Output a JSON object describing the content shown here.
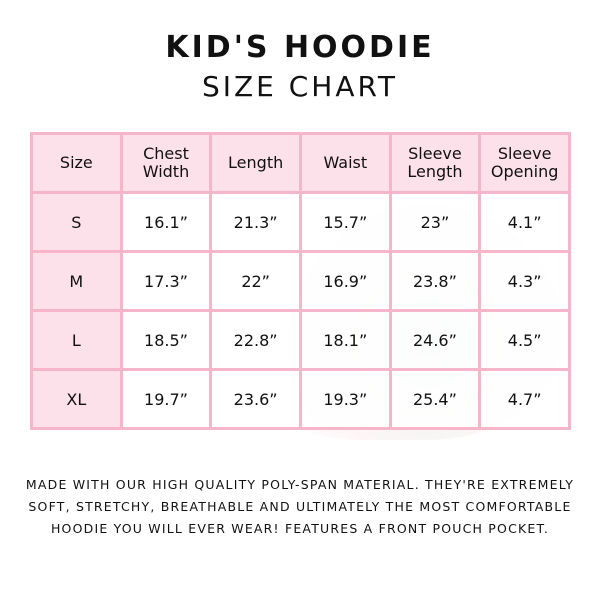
{
  "title": "KID'S HOODIE",
  "subtitle": "SIZE CHART",
  "table": {
    "headers": [
      "Size",
      "Chest Width",
      "Length",
      "Waist",
      "Sleeve Length",
      "Sleeve Opening"
    ],
    "rows": [
      [
        "S",
        "16.1”",
        "21.3”",
        "15.7”",
        "23”",
        "4.1”"
      ],
      [
        "M",
        "17.3”",
        "22”",
        "16.9”",
        "23.8”",
        "4.3”"
      ],
      [
        "L",
        "18.5”",
        "22.8”",
        "18.1”",
        "24.6”",
        "4.5”"
      ],
      [
        "XL",
        "19.7”",
        "23.6”",
        "19.3”",
        "25.4”",
        "4.7”"
      ]
    ]
  },
  "description": "Made with our high quality poly-span material. They're extremely soft, stretchy, breathable and ultimately the most comfortable hoodie you will ever wear! Features a front pouch pocket.",
  "colors": {
    "border": "#f6b5c9",
    "header_fill": "#fde1ea"
  }
}
